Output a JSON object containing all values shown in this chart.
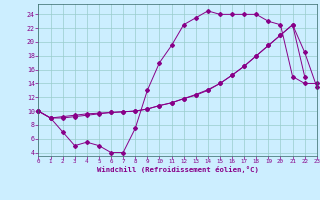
{
  "curve1_x": [
    0,
    1,
    2,
    3,
    4,
    5,
    6,
    7,
    8,
    9,
    10,
    11,
    12,
    13,
    14,
    15,
    16,
    17,
    18,
    19,
    20,
    21,
    22,
    23
  ],
  "curve1_y": [
    10,
    9,
    7,
    5,
    5.5,
    5,
    4,
    4,
    7.5,
    13,
    17,
    19.5,
    22.5,
    23.5,
    24.5,
    24,
    24,
    24,
    24,
    23,
    22.5,
    15,
    14,
    14
  ],
  "curve2_x": [
    0,
    1,
    2,
    3,
    4,
    5,
    6,
    7,
    8,
    9,
    10,
    11,
    12,
    13,
    14,
    15,
    16,
    17,
    18,
    19,
    20,
    21,
    22
  ],
  "curve2_y": [
    10,
    9,
    9.2,
    9.4,
    9.6,
    9.7,
    9.8,
    9.9,
    10,
    10.3,
    10.8,
    11.2,
    11.8,
    12.3,
    13,
    14,
    15.2,
    16.5,
    18,
    19.5,
    21,
    22.5,
    15
  ],
  "curve3_x": [
    0,
    1,
    2,
    3,
    4,
    5,
    6,
    7,
    8,
    9,
    10,
    11,
    12,
    13,
    14,
    15,
    16,
    17,
    18,
    19,
    20,
    21,
    22,
    23
  ],
  "curve3_y": [
    10,
    9,
    9,
    9.2,
    9.4,
    9.6,
    9.8,
    9.9,
    10,
    10.3,
    10.8,
    11.2,
    11.8,
    12.4,
    13.1,
    14,
    15.2,
    16.5,
    18,
    19.5,
    21,
    22.5,
    18.5,
    13.5
  ],
  "bg_color": "#cceeff",
  "line_color": "#880088",
  "grid_color": "#99cccc",
  "xlabel": "Windchill (Refroidissement éolien,°C)",
  "yticks": [
    4,
    6,
    8,
    10,
    12,
    14,
    16,
    18,
    20,
    22,
    24
  ],
  "xticks": [
    0,
    1,
    2,
    3,
    4,
    5,
    6,
    7,
    8,
    9,
    10,
    11,
    12,
    13,
    14,
    15,
    16,
    17,
    18,
    19,
    20,
    21,
    22,
    23
  ],
  "xlim": [
    0,
    23
  ],
  "ylim": [
    3.5,
    25.5
  ]
}
